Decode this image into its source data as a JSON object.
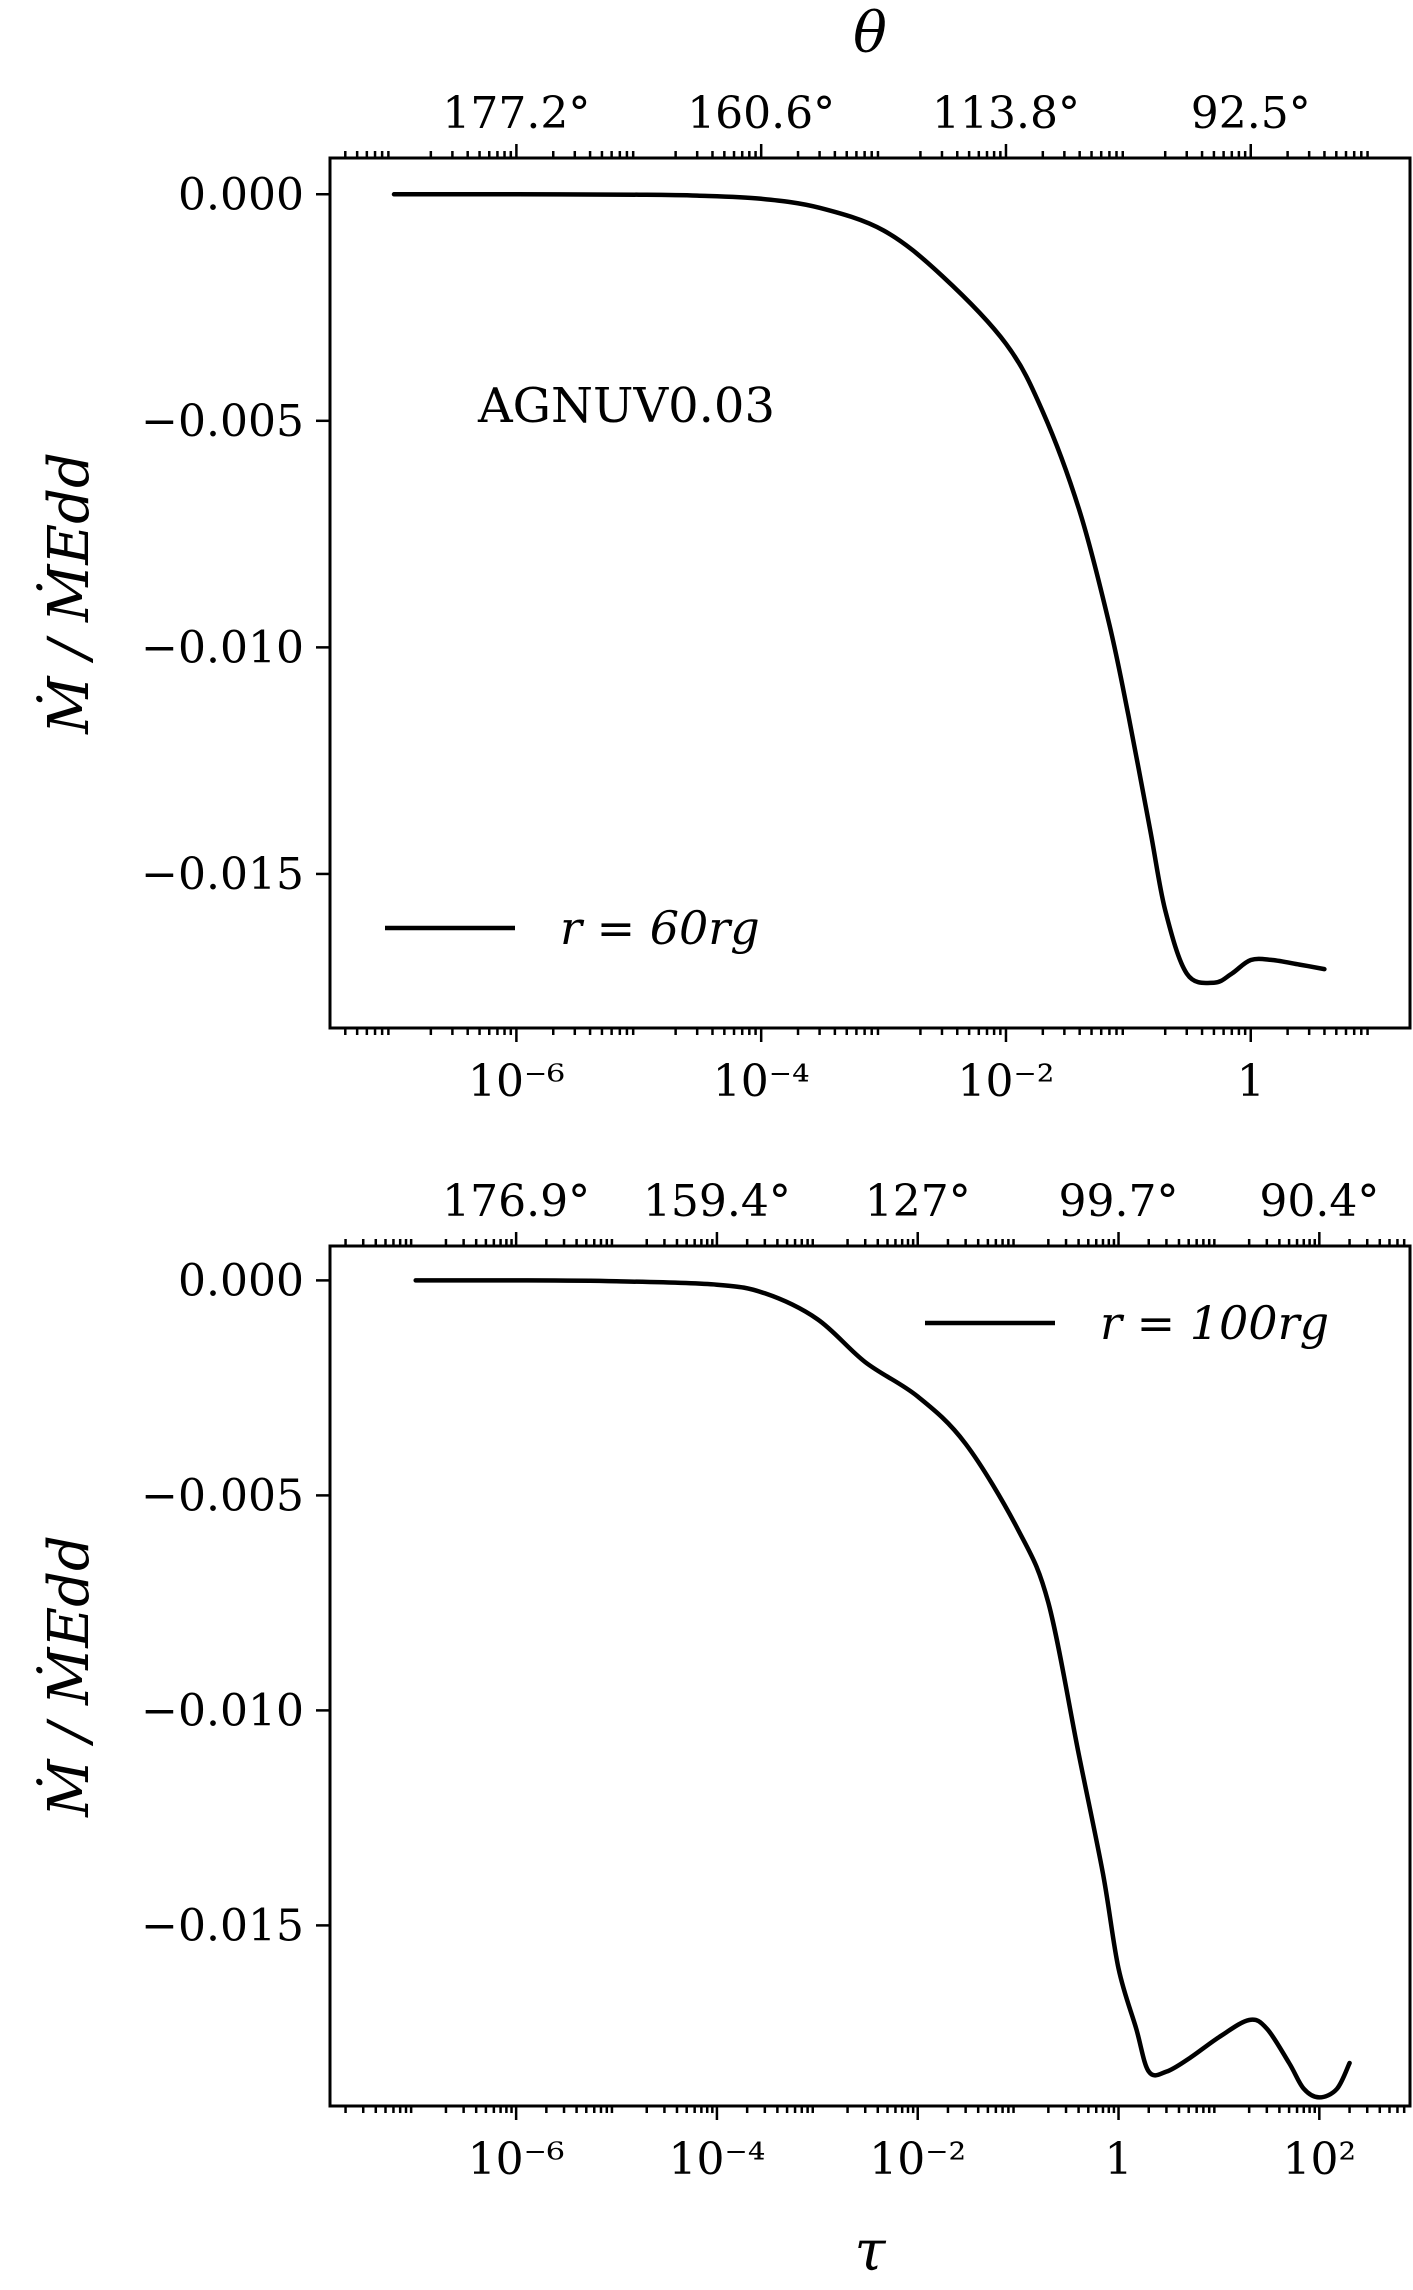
{
  "chart_data": [
    {
      "type": "line",
      "xscale": "log",
      "xlim": [
        3e-08,
        20
      ],
      "ylim": [
        -0.0184,
        0.0008
      ],
      "xlabel": "",
      "ylabel": "Ṁ / ṀEdd",
      "top_axis_label": "θ",
      "x_tick_labels": [
        "10⁻⁶",
        "10⁻⁴",
        "10⁻²",
        "1"
      ],
      "x_tick_values": [
        1e-06,
        0.0001,
        0.01,
        1
      ],
      "top_tick_labels": [
        "177.2°",
        "160.6°",
        "113.8°",
        "92.5°"
      ],
      "top_tick_values": [
        1e-06,
        0.0001,
        0.01,
        1
      ],
      "y_tick_labels": [
        "0.000",
        "−0.005",
        "−0.010",
        "−0.015"
      ],
      "y_tick_values": [
        0,
        -0.005,
        -0.01,
        -0.015
      ],
      "annotation": "AGNUV0.03",
      "legend_position": "lower-left",
      "series": [
        {
          "name": "r = 60rg",
          "x": [
            1e-07,
            1e-06,
            1e-05,
            3e-05,
            0.0001,
            0.0003,
            0.001,
            0.003,
            0.01,
            0.02,
            0.04,
            0.07,
            0.1,
            0.15,
            0.2,
            0.3,
            0.5,
            0.7,
            1.0,
            1.5,
            2.5,
            4.0
          ],
          "y": [
            0,
            0,
            -1e-05,
            -3e-05,
            -0.0001,
            -0.0003,
            -0.0008,
            -0.0018,
            -0.0033,
            -0.0048,
            -0.007,
            -0.0095,
            -0.0115,
            -0.014,
            -0.0158,
            -0.0172,
            -0.0174,
            -0.0172,
            -0.0169,
            -0.0169,
            -0.017,
            -0.0171
          ]
        }
      ]
    },
    {
      "type": "line",
      "xscale": "log",
      "xlim": [
        1.4e-08,
        800
      ],
      "ylim": [
        -0.0192,
        0.0008
      ],
      "xlabel": "τ",
      "ylabel": "Ṁ / ṀEdd",
      "x_tick_labels": [
        "10⁻⁶",
        "10⁻⁴",
        "10⁻²",
        "1",
        "10²"
      ],
      "x_tick_values": [
        1e-06,
        0.0001,
        0.01,
        1,
        100
      ],
      "top_tick_labels": [
        "176.9°",
        "159.4°",
        "127°",
        "99.7°",
        "90.4°"
      ],
      "top_tick_values": [
        1e-06,
        0.0001,
        0.01,
        1,
        100
      ],
      "y_tick_labels": [
        "0.000",
        "−0.005",
        "−0.010",
        "−0.015"
      ],
      "y_tick_values": [
        0,
        -0.005,
        -0.01,
        -0.015
      ],
      "legend_position": "upper-right",
      "series": [
        {
          "name": "r = 100rg",
          "x": [
            1e-07,
            1e-06,
            1e-05,
            0.0001,
            0.0003,
            0.001,
            0.003,
            0.01,
            0.03,
            0.1,
            0.2,
            0.4,
            0.7,
            1.0,
            1.5,
            2.0,
            3.0,
            5.0,
            10,
            20,
            30,
            50,
            70,
            100,
            150,
            200
          ],
          "y": [
            0,
            0,
            -2e-05,
            -0.0001,
            -0.0003,
            -0.0009,
            -0.0019,
            -0.0027,
            -0.0038,
            -0.0058,
            -0.0075,
            -0.011,
            -0.0138,
            -0.016,
            -0.0174,
            -0.0184,
            -0.0184,
            -0.0181,
            -0.0176,
            -0.0172,
            -0.0174,
            -0.0182,
            -0.0188,
            -0.019,
            -0.0188,
            -0.0182
          ]
        }
      ]
    }
  ]
}
